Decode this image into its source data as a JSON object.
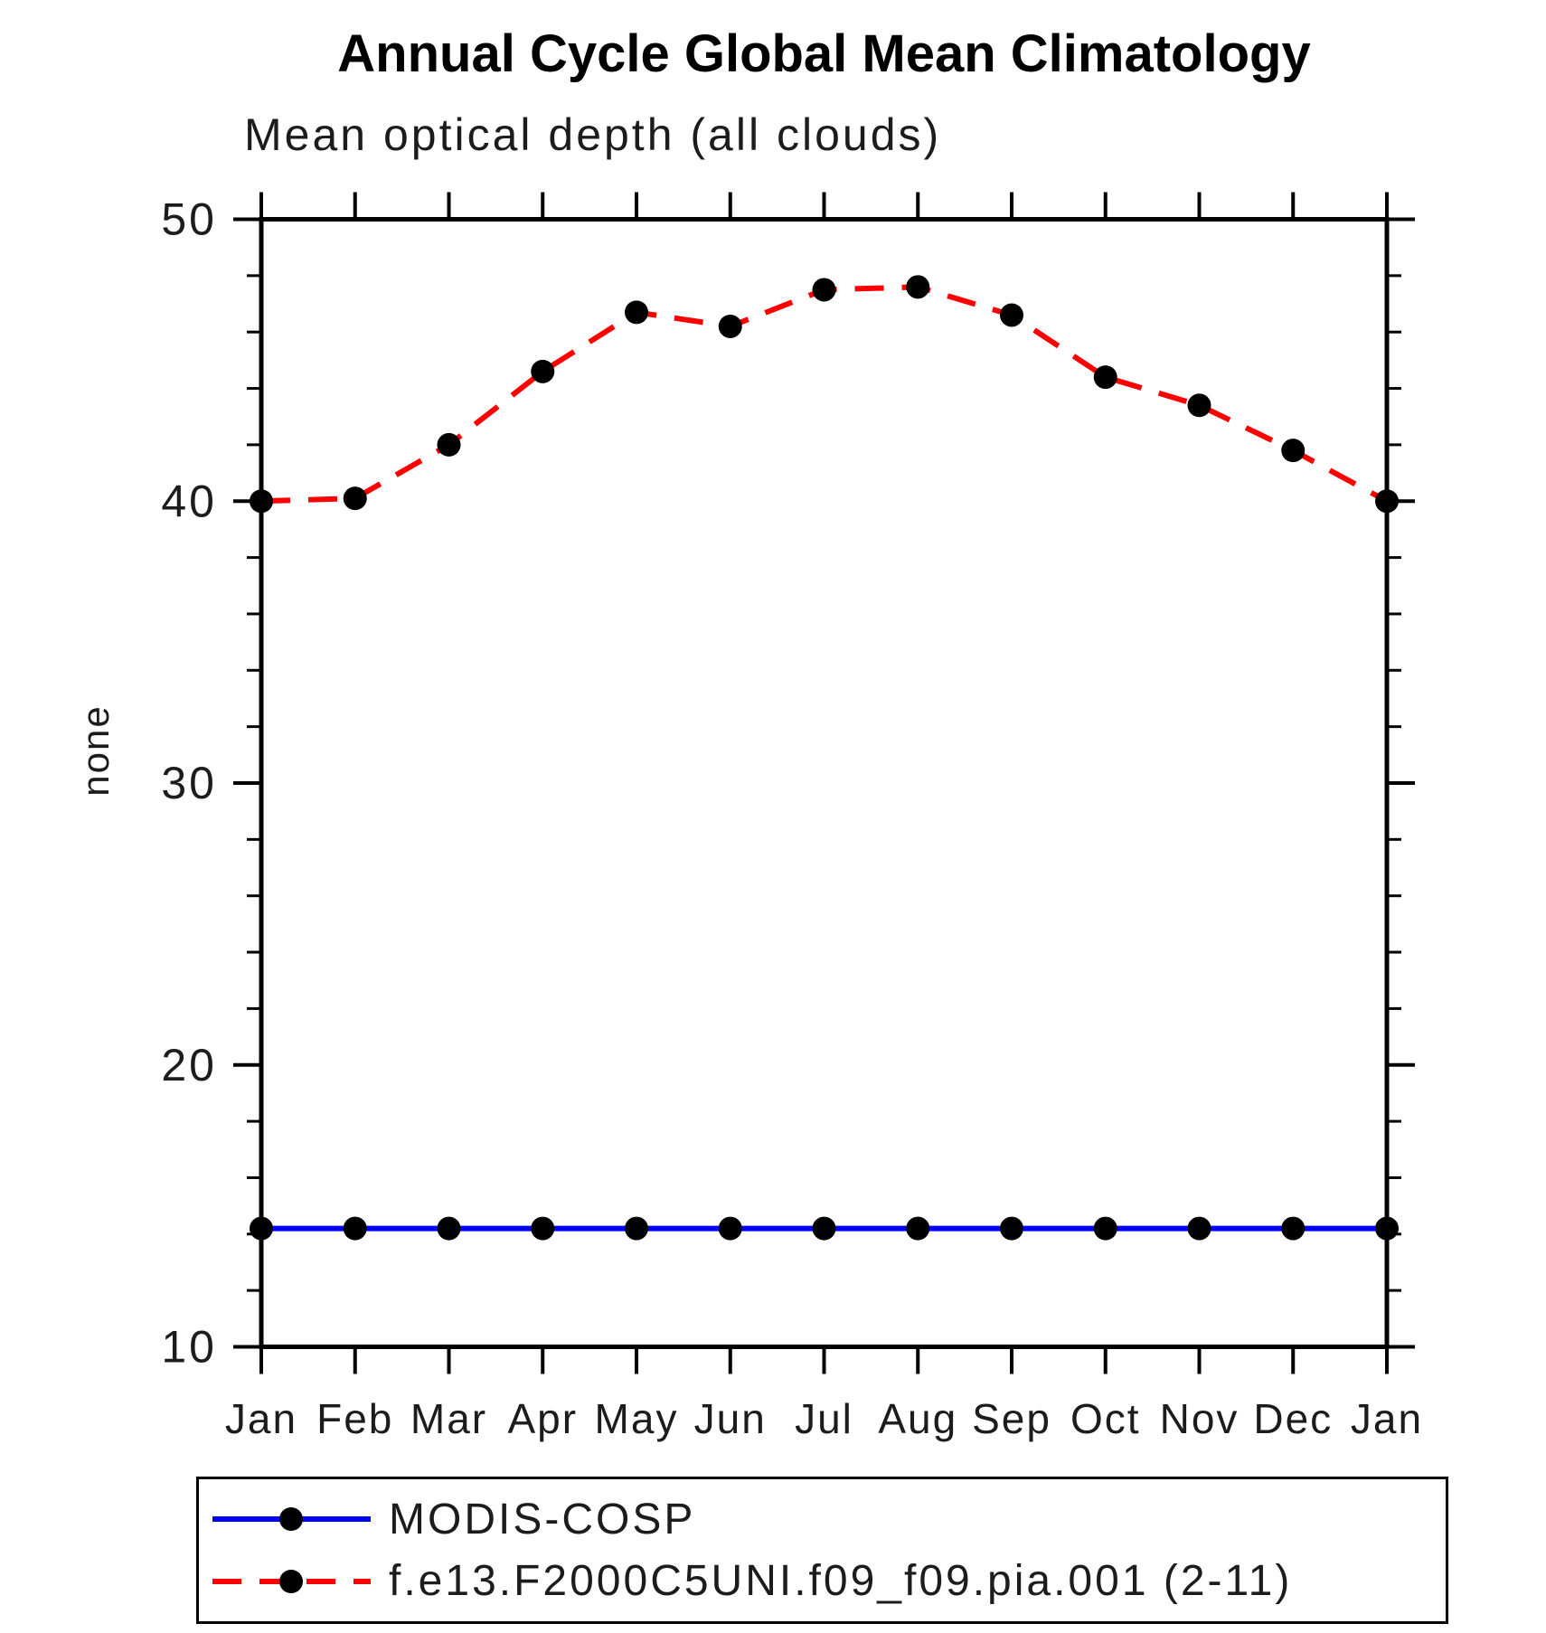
{
  "page": {
    "title": "Annual Cycle Global Mean Climatology"
  },
  "chart_data": {
    "type": "line",
    "title": "Mean optical depth (all clouds)",
    "ylabel": "none",
    "xlabel": "",
    "categories": [
      "Jan",
      "Feb",
      "Mar",
      "Apr",
      "May",
      "Jun",
      "Jul",
      "Aug",
      "Sep",
      "Oct",
      "Nov",
      "Dec",
      "Jan"
    ],
    "ylim": [
      10,
      50
    ],
    "yticks_major": [
      10,
      20,
      30,
      40,
      50
    ],
    "ytick_minor_step": 2,
    "grid": false,
    "legend_position": "bottom-left",
    "series": [
      {
        "name": "MODIS-COSP",
        "color": "#0000ff",
        "line_style": "solid",
        "marker": "circle",
        "marker_color": "#000000",
        "values": [
          14.2,
          14.2,
          14.2,
          14.2,
          14.2,
          14.2,
          14.2,
          14.2,
          14.2,
          14.2,
          14.2,
          14.2,
          14.2
        ]
      },
      {
        "name": "f.e13.F2000C5UNI.f09_f09.pia.001 (2-11)",
        "color": "#ff0000",
        "line_style": "dashed",
        "marker": "circle",
        "marker_color": "#000000",
        "values": [
          40.0,
          40.1,
          42.0,
          44.6,
          46.7,
          46.2,
          47.5,
          47.6,
          46.6,
          44.4,
          43.4,
          41.8,
          40.0
        ]
      }
    ]
  }
}
